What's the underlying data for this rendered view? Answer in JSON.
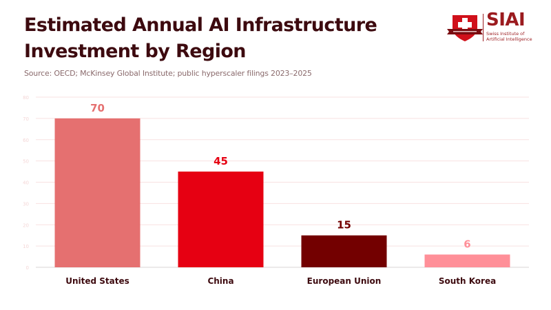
{
  "header": {
    "title_line1": "Estimated Annual AI Infrastructure",
    "title_line2": "Investment by Region",
    "subtitle": "Source: OECD; McKinsey Global Institute; public hyperscaler filings 2023–2025"
  },
  "logo": {
    "icon": "swiss-cross-shield-icon",
    "name": "SIAI",
    "full_name_line1": "Swiss Institute of",
    "full_name_line2": "Artificial Intelligence",
    "color": "#9b1b1f"
  },
  "chart_data": {
    "type": "bar",
    "title": "Estimated Annual AI Infrastructure Investment by Region",
    "subtitle": "Source: OECD; McKinsey Global Institute; public hyperscaler filings 2023–2025",
    "xlabel": "",
    "ylabel": "",
    "categories": [
      "United States",
      "China",
      "European Union",
      "South Korea"
    ],
    "values": [
      70,
      45,
      15,
      6
    ],
    "colors": [
      "#e57070",
      "#e60012",
      "#730000",
      "#ff8f98"
    ],
    "data_labels": [
      "70",
      "45",
      "15",
      "6"
    ],
    "ylim": [
      0,
      80
    ],
    "yticks": [
      0,
      10,
      20,
      30,
      40,
      50,
      60,
      70,
      80
    ],
    "ytick_labels": [
      "0",
      "10",
      "20",
      "30",
      "40",
      "50",
      "60",
      "70",
      "80"
    ],
    "grid": true,
    "legend": "none"
  }
}
